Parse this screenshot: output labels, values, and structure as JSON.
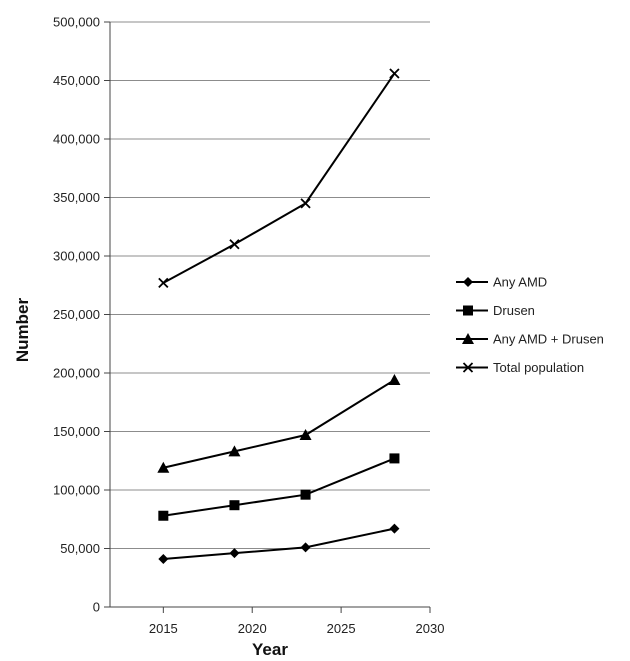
{
  "chart_data": {
    "type": "line",
    "xlabel": "Year",
    "ylabel": "Number",
    "xlim": [
      2012,
      2030
    ],
    "ylim": [
      0,
      500000
    ],
    "x_ticks": [
      "2015",
      "2020",
      "2025",
      "2030"
    ],
    "x_tick_values": [
      2015,
      2020,
      2025,
      2030
    ],
    "y_ticks": [
      "0",
      "50,000",
      "100,000",
      "150,000",
      "200,000",
      "250,000",
      "300,000",
      "350,000",
      "400,000",
      "450,000",
      "500,000"
    ],
    "y_tick_values": [
      0,
      50000,
      100000,
      150000,
      200000,
      250000,
      300000,
      350000,
      400000,
      450000,
      500000
    ],
    "grid": true,
    "legend_position": "right",
    "x": [
      2015,
      2019,
      2023,
      2028
    ],
    "series": [
      {
        "name": "Any AMD",
        "marker": "diamond",
        "values": [
          41000,
          46000,
          51000,
          67000
        ]
      },
      {
        "name": "Drusen",
        "marker": "square",
        "values": [
          78000,
          87000,
          96000,
          127000
        ]
      },
      {
        "name": "Any AMD + Drusen",
        "marker": "triangle",
        "values": [
          119000,
          133000,
          147000,
          194000
        ]
      },
      {
        "name": "Total population",
        "marker": "x",
        "values": [
          277000,
          310000,
          345000,
          456000
        ]
      }
    ],
    "colors": {
      "line": "#000000",
      "grid": "#8c8c8c"
    }
  }
}
